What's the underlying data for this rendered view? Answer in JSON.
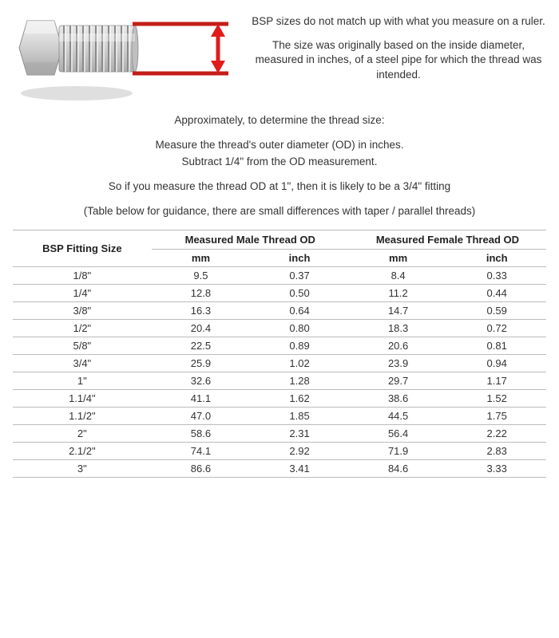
{
  "intro": {
    "line1": "BSP sizes do not match up with what you measure on a ruler.",
    "line2": "The size was originally based on the inside diameter, measured in inches, of a steel pipe for which the thread was intended."
  },
  "guide": {
    "approx": "Approximately, to determine the thread size:",
    "step1": "Measure the thread's outer diameter (OD) in inches.",
    "step2": "Subtract 1/4\" from the OD measurement.",
    "example": "So if you measure the thread OD at 1\", then it is likely to be a 3/4\" fitting",
    "table_note": "(Table below for guidance, there are small differences with taper / parallel threads)"
  },
  "table": {
    "headers": {
      "size": "BSP Fitting Size",
      "male": "Measured Male Thread OD",
      "female": "Measured Female Thread OD",
      "mm": "mm",
      "inch": "inch"
    },
    "rows": [
      {
        "size": "1/8\"",
        "m_mm": "9.5",
        "m_in": "0.37",
        "f_mm": "8.4",
        "f_in": "0.33"
      },
      {
        "size": "1/4\"",
        "m_mm": "12.8",
        "m_in": "0.50",
        "f_mm": "11.2",
        "f_in": "0.44"
      },
      {
        "size": "3/8\"",
        "m_mm": "16.3",
        "m_in": "0.64",
        "f_mm": "14.7",
        "f_in": "0.59"
      },
      {
        "size": "1/2\"",
        "m_mm": "20.4",
        "m_in": "0.80",
        "f_mm": "18.3",
        "f_in": "0.72"
      },
      {
        "size": "5/8\"",
        "m_mm": "22.5",
        "m_in": "0.89",
        "f_mm": "20.6",
        "f_in": "0.81"
      },
      {
        "size": "3/4\"",
        "m_mm": "25.9",
        "m_in": "1.02",
        "f_mm": "23.9",
        "f_in": "0.94"
      },
      {
        "size": "1\"",
        "m_mm": "32.6",
        "m_in": "1.28",
        "f_mm": "29.7",
        "f_in": "1.17"
      },
      {
        "size": "1.1/4\"",
        "m_mm": "41.1",
        "m_in": "1.62",
        "f_mm": "38.6",
        "f_in": "1.52"
      },
      {
        "size": "1.1/2\"",
        "m_mm": "47.0",
        "m_in": "1.85",
        "f_mm": "44.5",
        "f_in": "1.75"
      },
      {
        "size": "2\"",
        "m_mm": "58.6",
        "m_in": "2.31",
        "f_mm": "56.4",
        "f_in": "2.22"
      },
      {
        "size": "2.1/2\"",
        "m_mm": "74.1",
        "m_in": "2.92",
        "f_mm": "71.9",
        "f_in": "2.83"
      },
      {
        "size": "3\"",
        "m_mm": "86.6",
        "m_in": "3.41",
        "f_mm": "84.6",
        "f_in": "3.33"
      }
    ]
  },
  "diagram": {
    "line_color": "#c41e1a",
    "arrow_color": "#e11b1b",
    "fitting_body": "#d9d9d9",
    "fitting_edge": "#9a9a9a",
    "shadow": "#bcbcbc"
  }
}
